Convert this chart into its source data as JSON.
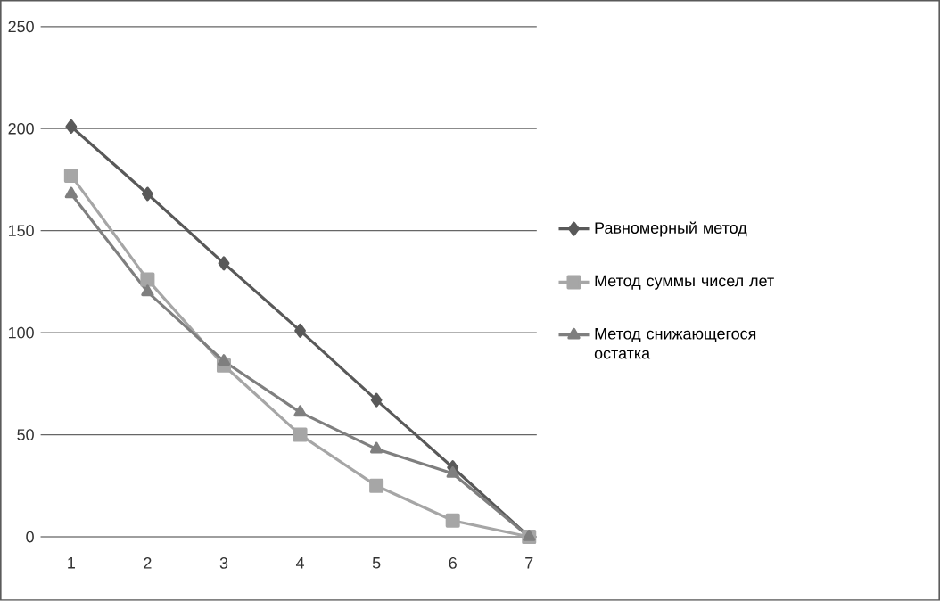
{
  "chart_data": {
    "type": "line",
    "categories": [
      "1",
      "2",
      "3",
      "4",
      "5",
      "6",
      "7"
    ],
    "ylim": [
      0,
      250
    ],
    "yticks": [
      0,
      50,
      100,
      150,
      200,
      250
    ],
    "grid": "y",
    "legend": "right",
    "series": [
      {
        "name": "Равномерный метод",
        "color": "#595959",
        "marker": "diamond",
        "values": [
          201,
          168,
          134,
          101,
          67,
          34,
          0
        ]
      },
      {
        "name": "Метод суммы чисел лет",
        "color": "#a6a6a6",
        "marker": "square",
        "values": [
          177,
          126,
          84,
          50,
          25,
          8,
          0
        ]
      },
      {
        "name": "Метод снижающегося остатка",
        "color": "#7f7f7f",
        "marker": "triangle",
        "values": [
          168,
          120,
          86,
          61,
          43,
          31,
          0
        ]
      }
    ]
  }
}
